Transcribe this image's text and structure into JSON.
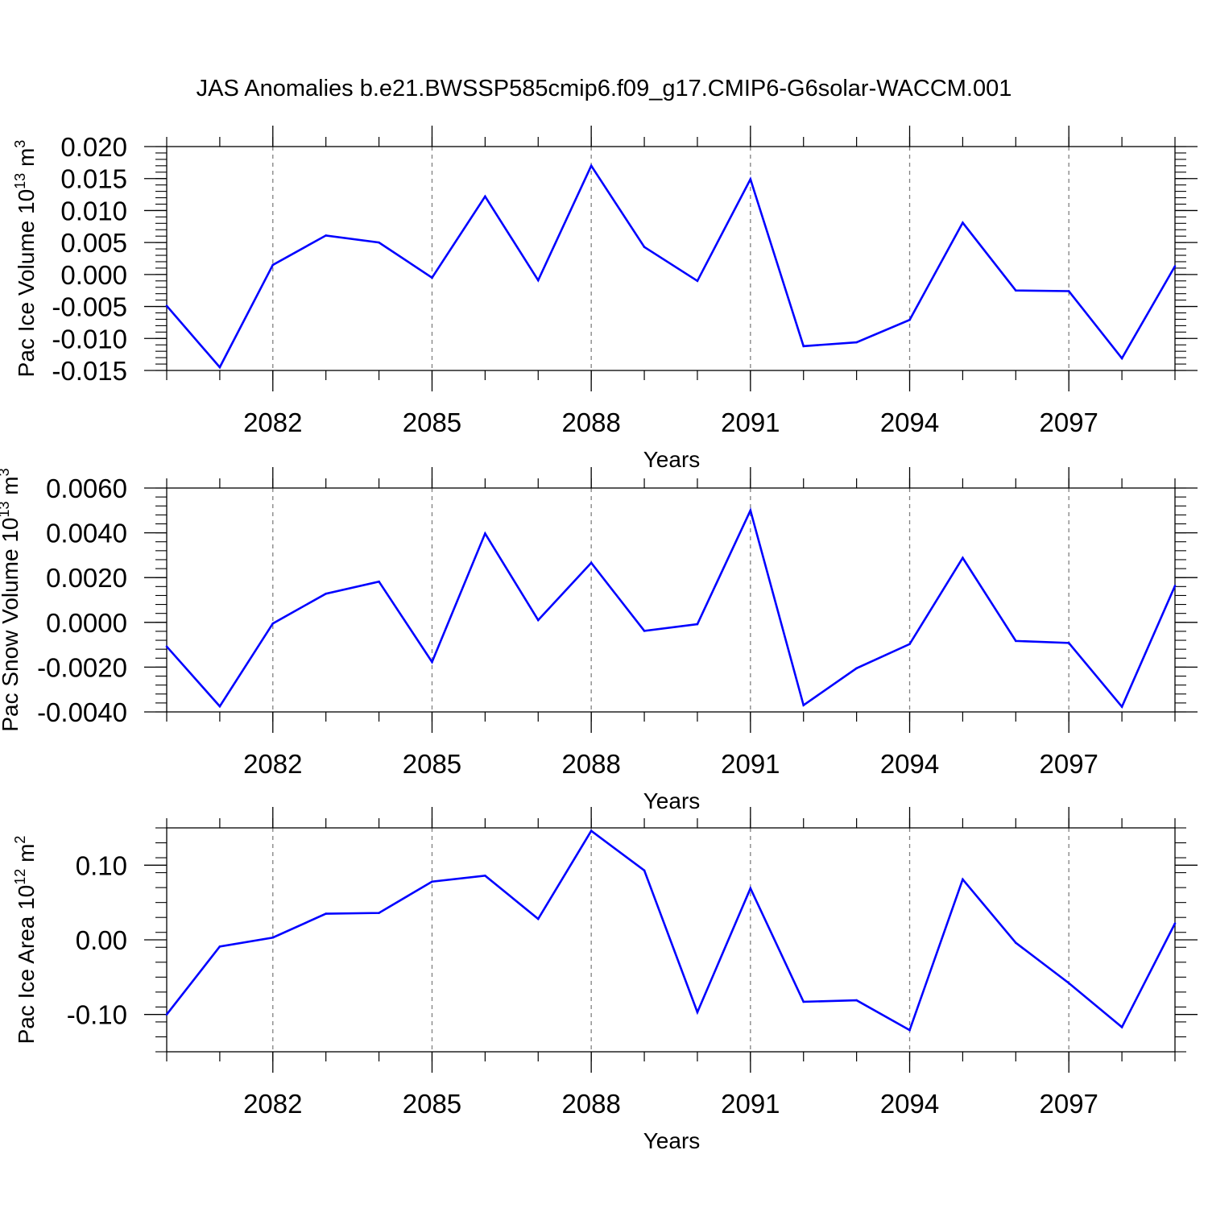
{
  "title": "JAS Anomalies b.e21.BWSSP585cmip6.f09_g17.CMIP6-G6solar-WACCM.001",
  "colors": {
    "line": "#0000ff",
    "axis": "#000000",
    "grid": "#808080"
  },
  "chart_data": [
    {
      "type": "line",
      "ylabel_main": "Pac Ice Volume 10",
      "ylabel_exp": "13",
      "ylabel_unit": " m",
      "ylabel_unit_exp": "3",
      "xlabel": "Years",
      "xlim": [
        2080,
        2099
      ],
      "ylim": [
        -0.015,
        0.02
      ],
      "yticks": [
        -0.015,
        -0.01,
        -0.005,
        0.0,
        0.005,
        0.01,
        0.015,
        0.02
      ],
      "ytick_labels": [
        "-0.015",
        "-0.010",
        "-0.005",
        "0.000",
        "0.005",
        "0.010",
        "0.015",
        "0.020"
      ],
      "yminor_step": 0.001,
      "xticks": [
        2082,
        2085,
        2088,
        2091,
        2094,
        2097
      ],
      "xtick_labels": [
        "2082",
        "2085",
        "2088",
        "2091",
        "2094",
        "2097"
      ],
      "grid": "vertical dashed at major x ticks",
      "x": [
        2080,
        2081,
        2082,
        2083,
        2084,
        2085,
        2086,
        2087,
        2088,
        2089,
        2090,
        2091,
        2092,
        2093,
        2094,
        2095,
        2096,
        2097,
        2098,
        2099
      ],
      "series": [
        {
          "values": [
            -0.0049,
            -0.0145,
            0.0015,
            0.0061,
            0.005,
            -0.0005,
            0.0122,
            -0.0009,
            0.017,
            0.0043,
            -0.001,
            0.0149,
            -0.0112,
            -0.0106,
            -0.0071,
            0.0081,
            -0.0025,
            -0.0026,
            -0.0131,
            0.0013
          ]
        }
      ]
    },
    {
      "type": "line",
      "ylabel_main": "Pac Snow Volume 10",
      "ylabel_exp": "13",
      "ylabel_unit": " m",
      "ylabel_unit_exp": "3",
      "xlabel": "Years",
      "xlim": [
        2080,
        2099
      ],
      "ylim": [
        -0.004,
        0.006
      ],
      "yticks": [
        -0.004,
        -0.002,
        0.0,
        0.002,
        0.004,
        0.006
      ],
      "ytick_labels": [
        "-0.0040",
        "-0.0020",
        "0.0000",
        "0.0020",
        "0.0040",
        "0.0060"
      ],
      "yminor_step": 0.0004,
      "xticks": [
        2082,
        2085,
        2088,
        2091,
        2094,
        2097
      ],
      "xtick_labels": [
        "2082",
        "2085",
        "2088",
        "2091",
        "2094",
        "2097"
      ],
      "grid": "vertical dashed at major x ticks",
      "x": [
        2080,
        2081,
        2082,
        2083,
        2084,
        2085,
        2086,
        2087,
        2088,
        2089,
        2090,
        2091,
        2092,
        2093,
        2094,
        2095,
        2096,
        2097,
        2098,
        2099
      ],
      "series": [
        {
          "values": [
            -0.00108,
            -0.00375,
            -5e-05,
            0.00128,
            0.00182,
            -0.00177,
            0.00397,
            0.0001,
            0.00266,
            -0.00038,
            -8e-05,
            0.005,
            -0.0037,
            -0.00205,
            -0.00097,
            0.00288,
            -0.00083,
            -0.00092,
            -0.00377,
            0.00163
          ]
        }
      ]
    },
    {
      "type": "line",
      "ylabel_main": "Pac Ice Area 10",
      "ylabel_exp": "12",
      "ylabel_unit": " m",
      "ylabel_unit_exp": "2",
      "xlabel": "Years",
      "xlim": [
        2080,
        2099
      ],
      "ylim": [
        -0.15,
        0.15
      ],
      "yticks": [
        -0.1,
        0.0,
        0.1
      ],
      "ytick_labels": [
        "-0.10",
        "0.00",
        "0.10"
      ],
      "yminor_step": 0.02,
      "xticks": [
        2082,
        2085,
        2088,
        2091,
        2094,
        2097
      ],
      "xtick_labels": [
        "2082",
        "2085",
        "2088",
        "2091",
        "2094",
        "2097"
      ],
      "grid": "vertical dashed at major x ticks",
      "x": [
        2080,
        2081,
        2082,
        2083,
        2084,
        2085,
        2086,
        2087,
        2088,
        2089,
        2090,
        2091,
        2092,
        2093,
        2094,
        2095,
        2096,
        2097,
        2098,
        2099
      ],
      "series": [
        {
          "values": [
            -0.1,
            -0.009,
            0.003,
            0.035,
            0.036,
            0.078,
            0.086,
            0.028,
            0.146,
            0.093,
            -0.097,
            0.069,
            -0.083,
            -0.081,
            -0.121,
            0.081,
            -0.004,
            -0.058,
            -0.117,
            0.022
          ]
        }
      ]
    }
  ]
}
